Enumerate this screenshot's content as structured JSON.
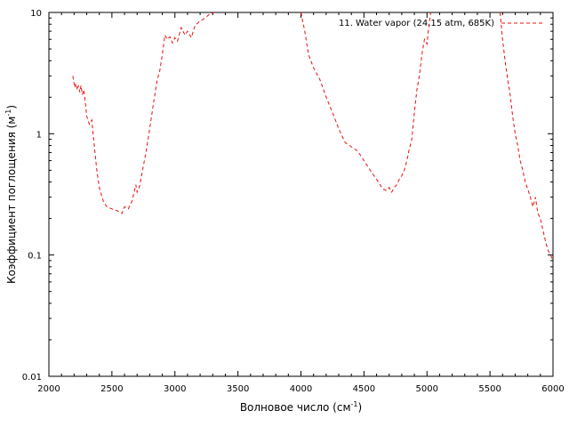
{
  "chart_data": {
    "type": "line",
    "title": "",
    "xlabel": "Волновое число (см",
    "xlabel_sup": "-1",
    "xlabel_end": ")",
    "ylabel": "Коэффициент поглощения (м",
    "ylabel_sup": "-1",
    "ylabel_end": ")",
    "xlim": [
      2000,
      6000
    ],
    "ylim": [
      0.01,
      10
    ],
    "yscale": "log",
    "grid": false,
    "legend": "top-right",
    "x_ticks": [
      2000,
      2500,
      3000,
      3500,
      4000,
      4500,
      5000,
      5500,
      6000
    ],
    "x_tick_labels": [
      "2000",
      "2500",
      "3000",
      "3500",
      "4000",
      "4500",
      "5000",
      "5500",
      "6000"
    ],
    "y_ticks": [
      0.01,
      0.1,
      1,
      10
    ],
    "y_tick_labels": [
      "0.01",
      "0.1",
      "1",
      "10"
    ],
    "series": [
      {
        "name": "11. Water vapor (24.15 atm, 685K)",
        "color": "#e8100e",
        "x": [
          2190,
          2205,
          2215,
          2225,
          2235,
          2245,
          2255,
          2265,
          2275,
          2285,
          2300,
          2320,
          2340,
          2360,
          2380,
          2400,
          2430,
          2460,
          2500,
          2550,
          2580,
          2600,
          2630,
          2660,
          2690,
          2700,
          2720,
          2740,
          2770,
          2800,
          2830,
          2860,
          2880,
          2900,
          2920,
          2940,
          2960,
          2980,
          3000,
          3020,
          3050,
          3080,
          3100,
          3130,
          3160,
          3200,
          3240,
          3280,
          3320,
          4000,
          4030,
          4060,
          4100,
          4150,
          4200,
          4250,
          4300,
          4350,
          4400,
          4450,
          4500,
          4550,
          4600,
          4650,
          4680,
          4700,
          4720,
          4740,
          4760,
          4780,
          4800,
          4820,
          4840,
          4860,
          4880,
          4900,
          4920,
          4940,
          4960,
          4980,
          5000,
          5010,
          5020,
          5030,
          5580,
          5600,
          5620,
          5640,
          5660,
          5680,
          5700,
          5720,
          5740,
          5760,
          5780,
          5800,
          5820,
          5840,
          5860,
          5880,
          5900,
          5920,
          5940,
          5960,
          5980,
          6000
        ],
        "values": [
          3.0,
          2.4,
          2.6,
          2.3,
          2.5,
          2.2,
          2.5,
          2.1,
          2.3,
          2.0,
          1.4,
          1.2,
          1.3,
          0.8,
          0.5,
          0.36,
          0.28,
          0.25,
          0.24,
          0.23,
          0.22,
          0.25,
          0.24,
          0.28,
          0.38,
          0.33,
          0.37,
          0.48,
          0.7,
          1.1,
          1.8,
          2.8,
          3.3,
          4.5,
          6.5,
          6.0,
          6.3,
          5.6,
          6.2,
          5.8,
          7.5,
          6.5,
          7.0,
          6.2,
          7.8,
          8.5,
          9.0,
          9.8,
          10,
          10,
          7.0,
          4.5,
          3.5,
          2.8,
          2.0,
          1.5,
          1.1,
          0.85,
          0.78,
          0.72,
          0.6,
          0.5,
          0.42,
          0.35,
          0.34,
          0.36,
          0.33,
          0.36,
          0.38,
          0.42,
          0.45,
          0.5,
          0.6,
          0.75,
          0.9,
          1.5,
          2.3,
          3.0,
          4.5,
          6.0,
          5.5,
          7.0,
          8.5,
          10,
          10,
          6.0,
          4.0,
          2.8,
          2.1,
          1.4,
          1.0,
          0.8,
          0.6,
          0.5,
          0.4,
          0.35,
          0.3,
          0.25,
          0.3,
          0.22,
          0.2,
          0.16,
          0.13,
          0.11,
          0.1,
          0.09
        ]
      }
    ]
  }
}
